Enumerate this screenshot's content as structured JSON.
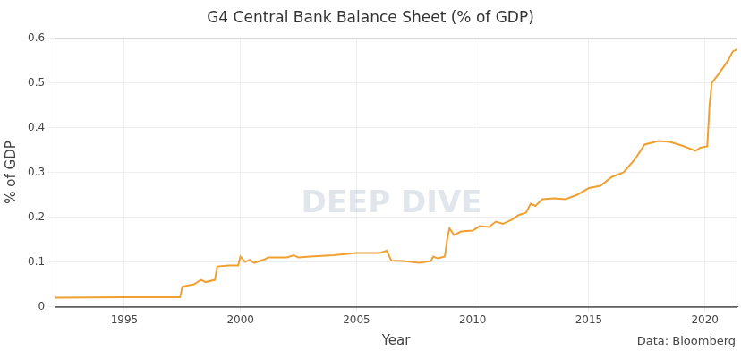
{
  "chart_data": {
    "type": "line",
    "title": "G4 Central Bank Balance Sheet (% of GDP)",
    "x_label": "Year",
    "y_label": "% of GDP",
    "source": "Data: Bloomberg",
    "watermark": "DEEP DIVE",
    "x": [
      1992.0,
      1995.0,
      1997.4,
      1997.5,
      1998.0,
      1998.3,
      1998.5,
      1998.9,
      1999.0,
      1999.5,
      1999.9,
      2000.0,
      2000.2,
      2000.4,
      2000.6,
      2001.0,
      2001.2,
      2002.0,
      2002.3,
      2002.5,
      2003.0,
      2004.0,
      2005.0,
      2006.0,
      2006.3,
      2006.5,
      2007.0,
      2007.7,
      2008.2,
      2008.3,
      2008.5,
      2008.8,
      2008.9,
      2009.0,
      2009.2,
      2009.5,
      2010.0,
      2010.3,
      2010.7,
      2011.0,
      2011.3,
      2011.7,
      2012.0,
      2012.3,
      2012.5,
      2012.7,
      2013.0,
      2013.5,
      2014.0,
      2014.5,
      2015.0,
      2015.5,
      2016.0,
      2016.5,
      2017.0,
      2017.4,
      2018.0,
      2018.5,
      2019.0,
      2019.6,
      2019.8,
      2020.1,
      2020.2,
      2020.3,
      2020.6,
      2021.0,
      2021.2,
      2021.4
    ],
    "values": [
      0.02,
      0.021,
      0.021,
      0.045,
      0.05,
      0.06,
      0.055,
      0.06,
      0.09,
      0.092,
      0.092,
      0.112,
      0.1,
      0.105,
      0.098,
      0.105,
      0.11,
      0.11,
      0.115,
      0.11,
      0.112,
      0.115,
      0.12,
      0.12,
      0.125,
      0.103,
      0.102,
      0.098,
      0.102,
      0.112,
      0.108,
      0.112,
      0.15,
      0.175,
      0.16,
      0.168,
      0.17,
      0.18,
      0.178,
      0.19,
      0.185,
      0.195,
      0.205,
      0.21,
      0.23,
      0.225,
      0.24,
      0.242,
      0.24,
      0.25,
      0.265,
      0.27,
      0.29,
      0.3,
      0.33,
      0.362,
      0.37,
      0.368,
      0.36,
      0.348,
      0.355,
      0.358,
      0.45,
      0.5,
      0.52,
      0.55,
      0.57,
      0.575
    ],
    "color": "#f0a030",
    "xlim": [
      1992.0,
      2021.4
    ],
    "xticks": [
      1995,
      2000,
      2005,
      2010,
      2015,
      2020
    ],
    "ylim": [
      0,
      0.6
    ],
    "yticks": [
      0,
      0.1,
      0.2,
      0.3,
      0.4,
      0.5,
      0.6
    ],
    "grid": true
  }
}
